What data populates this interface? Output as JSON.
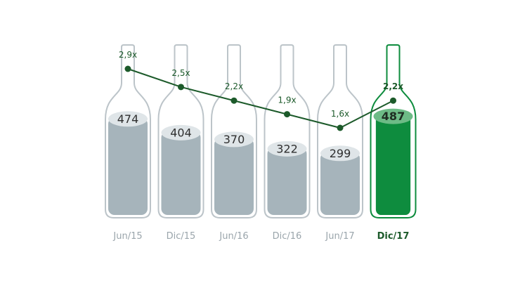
{
  "chart_data": {
    "type": "bar",
    "title": "",
    "xlabel": "",
    "ylabel": "",
    "categories": [
      "Jun/15",
      "Dic/15",
      "Jun/16",
      "Dic/16",
      "Jun/17",
      "Dic/17"
    ],
    "values": [
      474,
      404,
      370,
      322,
      299,
      487
    ],
    "value_labels": [
      "474",
      "404",
      "370",
      "322",
      "299",
      "487"
    ],
    "ylim": [
      0,
      550
    ],
    "highlight_index": 5,
    "line_series": {
      "values": [
        2.9,
        2.5,
        2.2,
        1.9,
        1.6,
        2.2
      ],
      "labels": [
        "2,9x",
        "2,5x",
        "2,2x",
        "1,9x",
        "1,6x",
        "2,2x"
      ],
      "ylim": [
        1.6,
        2.9
      ]
    },
    "grid": false,
    "legend": "none",
    "colors": {
      "bottle_outline": "#bcc4c9",
      "bottle_fill": "#a6b4bb",
      "liquid_top": "#dfe5e8",
      "highlight": "#0e8c3e",
      "highlight_top": "#6dbb86",
      "line": "#1c5a2a",
      "value_text": "#2f2f2f",
      "category_text": "#9aa5ab",
      "highlight_text": "#1c5a2a"
    }
  }
}
